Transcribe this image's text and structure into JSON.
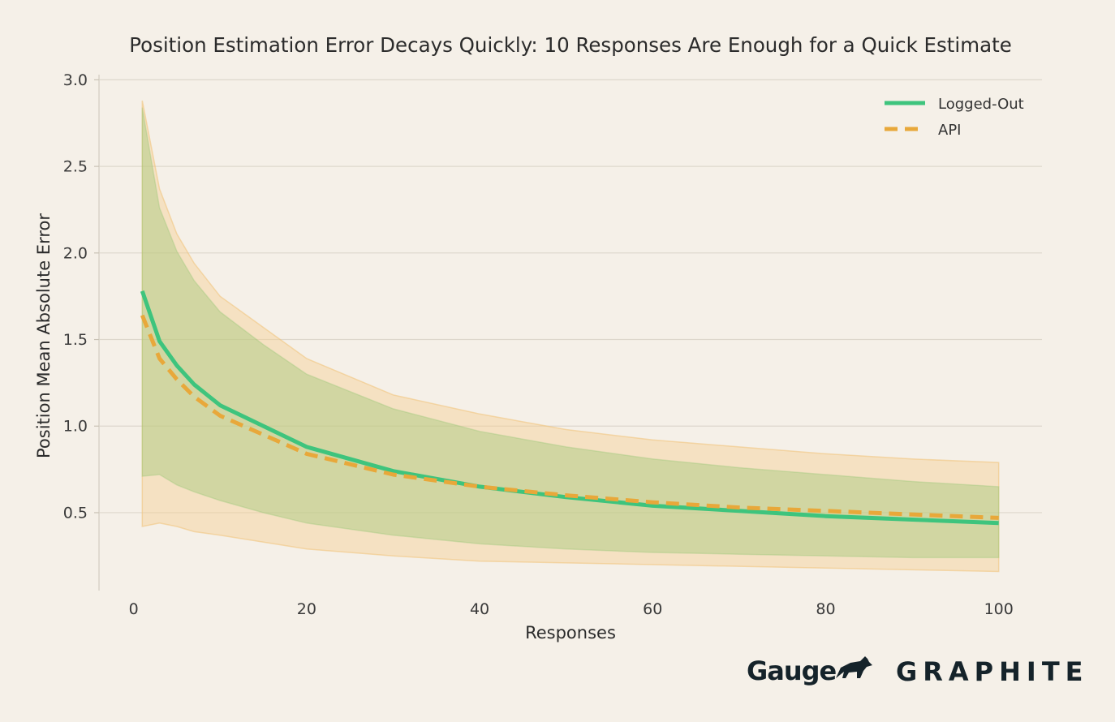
{
  "chart_data": {
    "type": "line",
    "title": "Position Estimation Error Decays Quickly: 10 Responses Are Enough for a Quick Estimate",
    "xlabel": "Responses",
    "ylabel": "Position Mean Absolute Error",
    "xlim": [
      -4,
      105
    ],
    "ylim": [
      0.05,
      3.03
    ],
    "xticks": [
      0,
      20,
      40,
      60,
      80,
      100
    ],
    "yticks": [
      0.5,
      1.0,
      1.5,
      2.0,
      2.5,
      3.0
    ],
    "ytick_labels": [
      "0.5",
      "1.0",
      "1.5",
      "2.0",
      "2.5",
      "3.0"
    ],
    "grid": "horizontal",
    "legend_position": "top-right",
    "x": [
      1,
      3,
      5,
      7,
      10,
      15,
      20,
      30,
      40,
      50,
      60,
      70,
      80,
      90,
      100
    ],
    "series": [
      {
        "name": "Logged-Out",
        "color": "#3ec47d",
        "line_style": "solid",
        "values": [
          1.78,
          1.49,
          1.35,
          1.24,
          1.12,
          1.0,
          0.88,
          0.74,
          0.65,
          0.59,
          0.54,
          0.51,
          0.48,
          0.46,
          0.44
        ],
        "band_upper": [
          2.84,
          2.26,
          2.01,
          1.84,
          1.66,
          1.47,
          1.3,
          1.1,
          0.97,
          0.88,
          0.81,
          0.76,
          0.72,
          0.68,
          0.65
        ],
        "band_lower": [
          0.71,
          0.72,
          0.66,
          0.62,
          0.57,
          0.5,
          0.44,
          0.37,
          0.32,
          0.29,
          0.27,
          0.26,
          0.25,
          0.24,
          0.24
        ]
      },
      {
        "name": "API",
        "color": "#e8a83a",
        "line_style": "dashed",
        "values": [
          1.64,
          1.39,
          1.27,
          1.17,
          1.06,
          0.95,
          0.84,
          0.72,
          0.65,
          0.6,
          0.56,
          0.53,
          0.51,
          0.49,
          0.47
        ],
        "band_upper": [
          2.88,
          2.37,
          2.11,
          1.94,
          1.75,
          1.57,
          1.39,
          1.18,
          1.07,
          0.98,
          0.92,
          0.88,
          0.84,
          0.81,
          0.79
        ],
        "band_lower": [
          0.42,
          0.44,
          0.42,
          0.39,
          0.37,
          0.33,
          0.29,
          0.25,
          0.22,
          0.21,
          0.2,
          0.19,
          0.18,
          0.17,
          0.16
        ]
      }
    ]
  },
  "logos": {
    "gauge": "Gauge",
    "graphite": "GRAPHITE"
  }
}
